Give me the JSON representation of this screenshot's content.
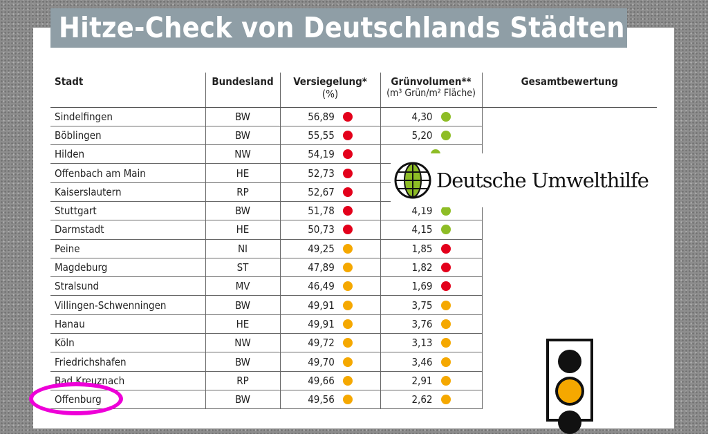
{
  "title": "Hitze-Check von Deutschlands Städten",
  "colors": {
    "red": "#e3001b",
    "orange": "#f5a800",
    "green": "#8ebd26",
    "title_bg": "#8f9ea6",
    "highlight": "#ee00d8"
  },
  "table": {
    "headers": {
      "stadt": "Stadt",
      "bundesland": "Bundesland",
      "versiegelung": "Versiegelung*",
      "versiegelung_unit": "(%)",
      "gruen": "Grünvolumen**",
      "gruen_unit": "(m³ Grün/m² Fläche)",
      "gesamt": "Gesamtbewertung"
    },
    "rows": [
      {
        "stadt": "Sindelfingen",
        "land": "BW",
        "vers": "56,89",
        "vers_c": "red",
        "gruen": "4,30",
        "gruen_c": "green"
      },
      {
        "stadt": "Böblingen",
        "land": "BW",
        "vers": "55,55",
        "vers_c": "red",
        "gruen": "5,20",
        "gruen_c": "green"
      },
      {
        "stadt": "Hilden",
        "land": "NW",
        "vers": "54,19",
        "vers_c": "red",
        "gruen": "",
        "gruen_c": "green"
      },
      {
        "stadt": "Offenbach am Main",
        "land": "HE",
        "vers": "52,73",
        "vers_c": "red",
        "gruen": "",
        "gruen_c": ""
      },
      {
        "stadt": "Kaiserslautern",
        "land": "RP",
        "vers": "52,67",
        "vers_c": "red",
        "gruen": "",
        "gruen_c": ""
      },
      {
        "stadt": "Stuttgart",
        "land": "BW",
        "vers": "51,78",
        "vers_c": "red",
        "gruen": "4,19",
        "gruen_c": "green"
      },
      {
        "stadt": "Darmstadt",
        "land": "HE",
        "vers": "50,73",
        "vers_c": "red",
        "gruen": "4,15",
        "gruen_c": "green"
      },
      {
        "stadt": "Peine",
        "land": "NI",
        "vers": "49,25",
        "vers_c": "orange",
        "gruen": "1,85",
        "gruen_c": "red"
      },
      {
        "stadt": "Magdeburg",
        "land": "ST",
        "vers": "47,89",
        "vers_c": "orange",
        "gruen": "1,82",
        "gruen_c": "red"
      },
      {
        "stadt": "Stralsund",
        "land": "MV",
        "vers": "46,49",
        "vers_c": "orange",
        "gruen": "1,69",
        "gruen_c": "red"
      },
      {
        "stadt": "Villingen-Schwenningen",
        "land": "BW",
        "vers": "49,91",
        "vers_c": "orange",
        "gruen": "3,75",
        "gruen_c": "orange"
      },
      {
        "stadt": "Hanau",
        "land": "HE",
        "vers": "49,91",
        "vers_c": "orange",
        "gruen": "3,76",
        "gruen_c": "orange"
      },
      {
        "stadt": "Köln",
        "land": "NW",
        "vers": "49,72",
        "vers_c": "orange",
        "gruen": "3,13",
        "gruen_c": "orange"
      },
      {
        "stadt": "Friedrichshafen",
        "land": "BW",
        "vers": "49,70",
        "vers_c": "orange",
        "gruen": "3,46",
        "gruen_c": "orange"
      },
      {
        "stadt": "Bad Kreuznach",
        "land": "RP",
        "vers": "49,66",
        "vers_c": "orange",
        "gruen": "2,91",
        "gruen_c": "orange"
      },
      {
        "stadt": "Offenburg",
        "land": "BW",
        "vers": "49,56",
        "vers_c": "orange",
        "gruen": "2,62",
        "gruen_c": "orange"
      }
    ]
  },
  "logo": {
    "text": "Deutsche Umwelthilfe",
    "icon": "globe-leaf-icon"
  },
  "traffic_light": {
    "active": "orange"
  }
}
